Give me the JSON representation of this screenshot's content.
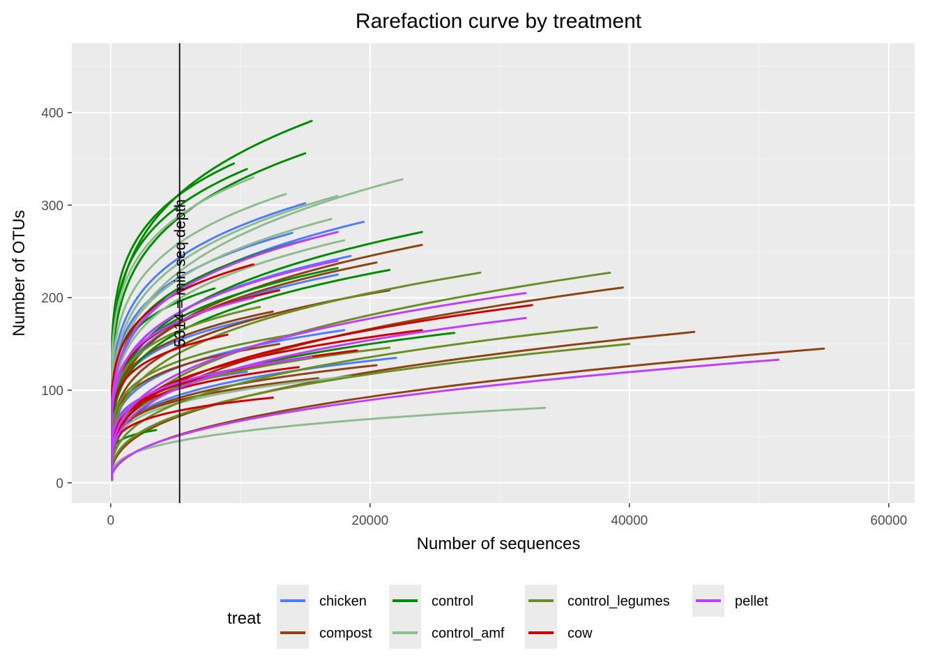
{
  "chart_data": {
    "type": "line",
    "title": "Rarefaction curve by treatment",
    "xlabel": "Number of sequences",
    "ylabel": "Number of OTUs",
    "xlim": [
      -3000,
      62000
    ],
    "ylim": [
      -22,
      475
    ],
    "x_ticks": [
      0,
      20000,
      40000,
      60000
    ],
    "x_tick_labels": [
      "0",
      "20000",
      "40000",
      "60000"
    ],
    "y_ticks": [
      0,
      100,
      200,
      300,
      400
    ],
    "y_tick_labels": [
      "0",
      "100",
      "200",
      "300",
      "400"
    ],
    "grid": true,
    "legend": {
      "title": "treat",
      "position": "bottom",
      "entries": [
        {
          "label": "chicken",
          "color": "#4d7cfe"
        },
        {
          "label": "compost",
          "color": "#8b4513"
        },
        {
          "label": "control",
          "color": "#008b00"
        },
        {
          "label": "control_amf",
          "color": "#8fbc8f"
        },
        {
          "label": "control_legumes",
          "color": "#6b8e23"
        },
        {
          "label": "cow",
          "color": "#cd0000"
        },
        {
          "label": "pellet",
          "color": "#bf3eff"
        }
      ]
    },
    "reference_line": {
      "x": 5314,
      "label": "5314 = min seq depth"
    },
    "series": [
      {
        "name": "chicken",
        "color": "#4d7cfe",
        "curves": [
          {
            "x_max": 15000,
            "y_max": 302
          },
          {
            "x_max": 19500,
            "y_max": 282
          },
          {
            "x_max": 14000,
            "y_max": 270
          },
          {
            "x_max": 18500,
            "y_max": 245
          },
          {
            "x_max": 17500,
            "y_max": 225
          },
          {
            "x_max": 18000,
            "y_max": 165
          },
          {
            "x_max": 22000,
            "y_max": 135
          },
          {
            "x_max": 12000,
            "y_max": 180
          },
          {
            "x_max": 10500,
            "y_max": 120
          }
        ]
      },
      {
        "name": "compost",
        "color": "#8b4513",
        "curves": [
          {
            "x_max": 55000,
            "y_max": 145
          },
          {
            "x_max": 45000,
            "y_max": 163
          },
          {
            "x_max": 39500,
            "y_max": 211
          },
          {
            "x_max": 24000,
            "y_max": 257
          },
          {
            "x_max": 20500,
            "y_max": 238
          },
          {
            "x_max": 21500,
            "y_max": 208
          },
          {
            "x_max": 20500,
            "y_max": 127
          },
          {
            "x_max": 16000,
            "y_max": 113
          },
          {
            "x_max": 12500,
            "y_max": 185
          },
          {
            "x_max": 13000,
            "y_max": 150
          }
        ]
      },
      {
        "name": "control",
        "color": "#008b00",
        "curves": [
          {
            "x_max": 15500,
            "y_max": 391
          },
          {
            "x_max": 15000,
            "y_max": 356
          },
          {
            "x_max": 10500,
            "y_max": 339
          },
          {
            "x_max": 9500,
            "y_max": 345
          },
          {
            "x_max": 24000,
            "y_max": 271
          },
          {
            "x_max": 21500,
            "y_max": 230
          },
          {
            "x_max": 15500,
            "y_max": 264
          },
          {
            "x_max": 17500,
            "y_max": 232
          },
          {
            "x_max": 26500,
            "y_max": 162
          },
          {
            "x_max": 3500,
            "y_max": 57
          },
          {
            "x_max": 8000,
            "y_max": 210
          }
        ]
      },
      {
        "name": "control_amf",
        "color": "#8fbc8f",
        "curves": [
          {
            "x_max": 22500,
            "y_max": 328
          },
          {
            "x_max": 17500,
            "y_max": 310
          },
          {
            "x_max": 13500,
            "y_max": 312
          },
          {
            "x_max": 17000,
            "y_max": 285
          },
          {
            "x_max": 18000,
            "y_max": 262
          },
          {
            "x_max": 33500,
            "y_max": 81
          },
          {
            "x_max": 18500,
            "y_max": 115
          },
          {
            "x_max": 11000,
            "y_max": 330
          }
        ]
      },
      {
        "name": "control_legumes",
        "color": "#6b8e23",
        "curves": [
          {
            "x_max": 38500,
            "y_max": 227
          },
          {
            "x_max": 28500,
            "y_max": 227
          },
          {
            "x_max": 37500,
            "y_max": 168
          },
          {
            "x_max": 40000,
            "y_max": 150
          },
          {
            "x_max": 21500,
            "y_max": 146
          },
          {
            "x_max": 11500,
            "y_max": 190
          },
          {
            "x_max": 14000,
            "y_max": 160
          }
        ]
      },
      {
        "name": "cow",
        "color": "#cd0000",
        "curves": [
          {
            "x_max": 32500,
            "y_max": 192
          },
          {
            "x_max": 24000,
            "y_max": 165
          },
          {
            "x_max": 13000,
            "y_max": 208
          },
          {
            "x_max": 11000,
            "y_max": 236
          },
          {
            "x_max": 19000,
            "y_max": 143
          },
          {
            "x_max": 12500,
            "y_max": 92
          },
          {
            "x_max": 14500,
            "y_max": 125
          },
          {
            "x_max": 9000,
            "y_max": 160
          }
        ]
      },
      {
        "name": "pellet",
        "color": "#bf3eff",
        "curves": [
          {
            "x_max": 51500,
            "y_max": 133
          },
          {
            "x_max": 32000,
            "y_max": 205
          },
          {
            "x_max": 32000,
            "y_max": 178
          },
          {
            "x_max": 17500,
            "y_max": 271
          },
          {
            "x_max": 17500,
            "y_max": 240
          },
          {
            "x_max": 15500,
            "y_max": 136
          },
          {
            "x_max": 11000,
            "y_max": 200
          }
        ]
      }
    ]
  }
}
